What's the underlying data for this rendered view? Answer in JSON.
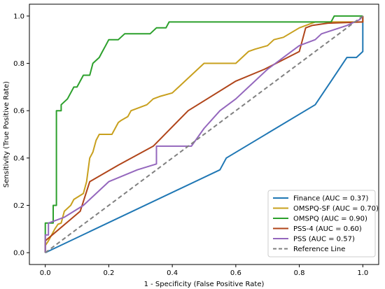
{
  "chart_data": {
    "type": "line",
    "title": "",
    "xlabel": "1 - Specificity (False Positive Rate)",
    "ylabel": "Sensitivity (True Positive Rate)",
    "xlim": [
      -0.05,
      1.05
    ],
    "ylim": [
      -0.05,
      1.05
    ],
    "xticks": [
      "0.0",
      "0.2",
      "0.4",
      "0.6",
      "0.8",
      "1.0"
    ],
    "yticks": [
      "0.0",
      "0.2",
      "0.4",
      "0.6",
      "0.8",
      "1.0"
    ],
    "grid": false,
    "legend_position": "bottom-right",
    "series": [
      {
        "name": "Finance (AUC = 0.37)",
        "color": "#1f77b4",
        "dash": false,
        "points": [
          [
            0,
            0
          ],
          [
            0.55,
            0.35
          ],
          [
            0.57,
            0.4
          ],
          [
            0.85,
            0.625
          ],
          [
            0.9,
            0.725
          ],
          [
            0.95,
            0.825
          ],
          [
            0.98,
            0.825
          ],
          [
            1.0,
            0.85
          ],
          [
            1.0,
            1.0
          ]
        ]
      },
      {
        "name": "OMSPQ-SF (AUC = 0.70)",
        "color": "#c8a01e",
        "dash": false,
        "points": [
          [
            0,
            0
          ],
          [
            0,
            0.03
          ],
          [
            0.01,
            0.05
          ],
          [
            0.03,
            0.1
          ],
          [
            0.04,
            0.12
          ],
          [
            0.05,
            0.125
          ],
          [
            0.06,
            0.175
          ],
          [
            0.08,
            0.2
          ],
          [
            0.09,
            0.225
          ],
          [
            0.12,
            0.25
          ],
          [
            0.13,
            0.3
          ],
          [
            0.14,
            0.4
          ],
          [
            0.15,
            0.425
          ],
          [
            0.16,
            0.475
          ],
          [
            0.17,
            0.5
          ],
          [
            0.21,
            0.5
          ],
          [
            0.23,
            0.55
          ],
          [
            0.24,
            0.56
          ],
          [
            0.26,
            0.575
          ],
          [
            0.27,
            0.6
          ],
          [
            0.32,
            0.625
          ],
          [
            0.34,
            0.65
          ],
          [
            0.36,
            0.66
          ],
          [
            0.4,
            0.675
          ],
          [
            0.44,
            0.725
          ],
          [
            0.5,
            0.8
          ],
          [
            0.6,
            0.8
          ],
          [
            0.64,
            0.85
          ],
          [
            0.66,
            0.86
          ],
          [
            0.7,
            0.875
          ],
          [
            0.72,
            0.9
          ],
          [
            0.75,
            0.91
          ],
          [
            0.8,
            0.95
          ],
          [
            0.85,
            0.975
          ],
          [
            0.95,
            0.975
          ],
          [
            0.97,
            0.975
          ],
          [
            1.0,
            0.975
          ],
          [
            1.0,
            1.0
          ]
        ]
      },
      {
        "name": "OMSPQ (AUC = 0.90)",
        "color": "#2ca02c",
        "dash": false,
        "points": [
          [
            0,
            0
          ],
          [
            0,
            0.125
          ],
          [
            0.025,
            0.125
          ],
          [
            0.025,
            0.2
          ],
          [
            0.035,
            0.2
          ],
          [
            0.035,
            0.6
          ],
          [
            0.05,
            0.6
          ],
          [
            0.05,
            0.625
          ],
          [
            0.07,
            0.65
          ],
          [
            0.09,
            0.7
          ],
          [
            0.1,
            0.7
          ],
          [
            0.12,
            0.75
          ],
          [
            0.14,
            0.75
          ],
          [
            0.15,
            0.8
          ],
          [
            0.17,
            0.825
          ],
          [
            0.18,
            0.85
          ],
          [
            0.19,
            0.875
          ],
          [
            0.2,
            0.9
          ],
          [
            0.23,
            0.9
          ],
          [
            0.25,
            0.925
          ],
          [
            0.33,
            0.925
          ],
          [
            0.35,
            0.95
          ],
          [
            0.38,
            0.95
          ],
          [
            0.39,
            0.975
          ],
          [
            0.9,
            0.975
          ],
          [
            0.91,
            1.0
          ],
          [
            1.0,
            1.0
          ]
        ]
      },
      {
        "name": "PSS-4 (AUC = 0.60)",
        "color": "#b0451a",
        "dash": false,
        "points": [
          [
            0,
            0
          ],
          [
            0,
            0.05
          ],
          [
            0.11,
            0.175
          ],
          [
            0.14,
            0.3
          ],
          [
            0.23,
            0.37
          ],
          [
            0.34,
            0.45
          ],
          [
            0.45,
            0.6
          ],
          [
            0.6,
            0.725
          ],
          [
            0.69,
            0.775
          ],
          [
            0.8,
            0.85
          ],
          [
            0.82,
            0.95
          ],
          [
            0.84,
            0.96
          ],
          [
            0.89,
            0.97
          ],
          [
            1.0,
            0.975
          ],
          [
            1.0,
            1.0
          ]
        ]
      },
      {
        "name": "PSS (AUC = 0.57)",
        "color": "#9467bd",
        "dash": false,
        "points": [
          [
            0,
            0
          ],
          [
            0,
            0.075
          ],
          [
            0.01,
            0.075
          ],
          [
            0.01,
            0.125
          ],
          [
            0.06,
            0.15
          ],
          [
            0.12,
            0.2
          ],
          [
            0.2,
            0.3
          ],
          [
            0.29,
            0.35
          ],
          [
            0.35,
            0.375
          ],
          [
            0.35,
            0.45
          ],
          [
            0.46,
            0.45
          ],
          [
            0.5,
            0.525
          ],
          [
            0.55,
            0.6
          ],
          [
            0.6,
            0.65
          ],
          [
            0.7,
            0.775
          ],
          [
            0.75,
            0.825
          ],
          [
            0.8,
            0.875
          ],
          [
            0.85,
            0.9
          ],
          [
            0.87,
            0.925
          ],
          [
            0.95,
            0.96
          ],
          [
            0.99,
            0.985
          ],
          [
            1.0,
            1.0
          ]
        ]
      },
      {
        "name": "Reference Line",
        "color": "#808080",
        "dash": true,
        "points": [
          [
            0,
            0
          ],
          [
            1,
            1
          ]
        ]
      }
    ]
  }
}
